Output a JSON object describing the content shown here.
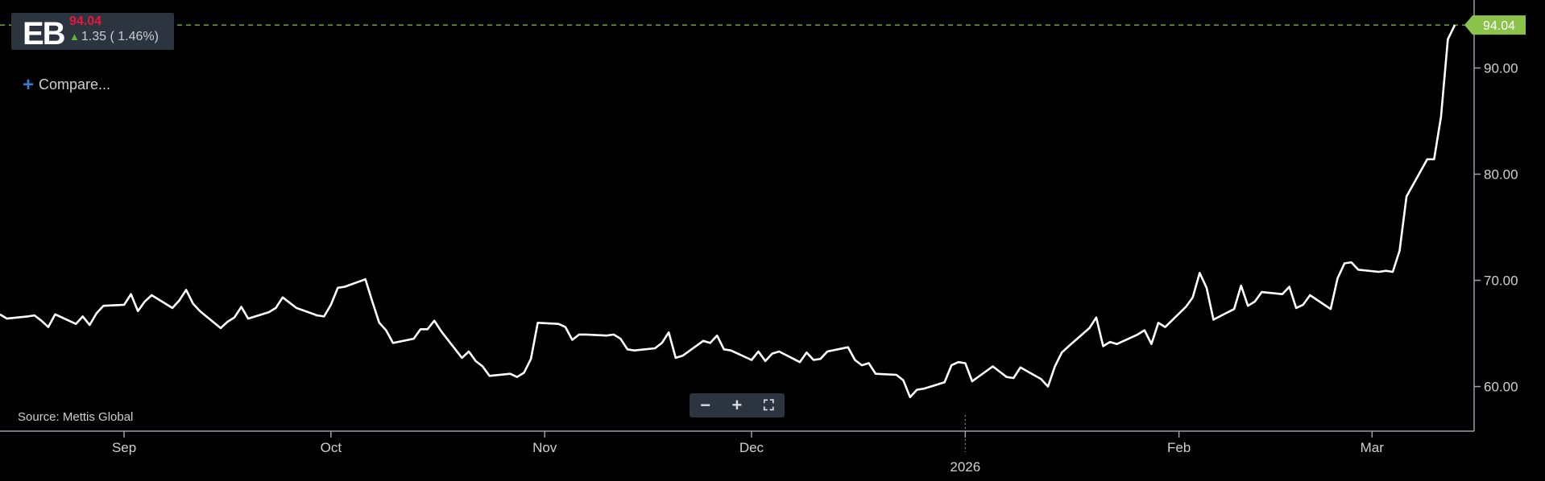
{
  "ticker": {
    "symbol": "EB",
    "last_price": "94.04",
    "change_text": "1.35 ( 1.46%)",
    "direction": "up",
    "price_color": "#e8173c",
    "change_arrow_color": "#5fba2e"
  },
  "compare_label": "Compare...",
  "source_label": "Source: Mettis Global",
  "zoom_controls": [
    {
      "name": "zoom-out-icon",
      "glyph": "−"
    },
    {
      "name": "zoom-in-icon",
      "glyph": "+"
    },
    {
      "name": "fullscreen-icon",
      "glyph": "⛶"
    }
  ],
  "chart_data": {
    "type": "line",
    "series": [
      {
        "color": "#ffffff",
        "points": [
          [
            "2025-08-14",
            66.8
          ],
          [
            "2025-08-15",
            66.4
          ],
          [
            "2025-08-18",
            66.6
          ],
          [
            "2025-08-19",
            66.7
          ],
          [
            "2025-08-20",
            66.2
          ],
          [
            "2025-08-21",
            65.6
          ],
          [
            "2025-08-22",
            66.8
          ],
          [
            "2025-08-25",
            65.9
          ],
          [
            "2025-08-26",
            66.6
          ],
          [
            "2025-08-27",
            65.8
          ],
          [
            "2025-08-28",
            66.9
          ],
          [
            "2025-08-29",
            67.6
          ],
          [
            "2025-09-01",
            67.7
          ],
          [
            "2025-09-02",
            68.7
          ],
          [
            "2025-09-03",
            67.1
          ],
          [
            "2025-09-04",
            68.0
          ],
          [
            "2025-09-05",
            68.6
          ],
          [
            "2025-09-08",
            67.4
          ],
          [
            "2025-09-09",
            68.1
          ],
          [
            "2025-09-10",
            69.1
          ],
          [
            "2025-09-11",
            67.8
          ],
          [
            "2025-09-12",
            67.1
          ],
          [
            "2025-09-15",
            65.5
          ],
          [
            "2025-09-16",
            66.1
          ],
          [
            "2025-09-17",
            66.5
          ],
          [
            "2025-09-18",
            67.5
          ],
          [
            "2025-09-19",
            66.4
          ],
          [
            "2025-09-22",
            67.0
          ],
          [
            "2025-09-23",
            67.4
          ],
          [
            "2025-09-24",
            68.4
          ],
          [
            "2025-09-25",
            67.9
          ],
          [
            "2025-09-26",
            67.4
          ],
          [
            "2025-09-29",
            66.7
          ],
          [
            "2025-09-30",
            66.6
          ],
          [
            "2025-10-01",
            67.7
          ],
          [
            "2025-10-02",
            69.3
          ],
          [
            "2025-10-03",
            69.4
          ],
          [
            "2025-10-06",
            70.1
          ],
          [
            "2025-10-07",
            68.0
          ],
          [
            "2025-10-08",
            66.0
          ],
          [
            "2025-10-09",
            65.3
          ],
          [
            "2025-10-10",
            64.1
          ],
          [
            "2025-10-13",
            64.5
          ],
          [
            "2025-10-14",
            65.4
          ],
          [
            "2025-10-15",
            65.4
          ],
          [
            "2025-10-16",
            66.2
          ],
          [
            "2025-10-17",
            65.2
          ],
          [
            "2025-10-20",
            62.7
          ],
          [
            "2025-10-21",
            63.3
          ],
          [
            "2025-10-22",
            62.4
          ],
          [
            "2025-10-23",
            61.9
          ],
          [
            "2025-10-24",
            61.0
          ],
          [
            "2025-10-27",
            61.2
          ],
          [
            "2025-10-28",
            60.9
          ],
          [
            "2025-10-29",
            61.3
          ],
          [
            "2025-10-30",
            62.6
          ],
          [
            "2025-10-31",
            66.0
          ],
          [
            "2025-11-03",
            65.9
          ],
          [
            "2025-11-04",
            65.6
          ],
          [
            "2025-11-05",
            64.4
          ],
          [
            "2025-11-06",
            64.9
          ],
          [
            "2025-11-07",
            64.9
          ],
          [
            "2025-11-10",
            64.8
          ],
          [
            "2025-11-11",
            64.9
          ],
          [
            "2025-11-12",
            64.5
          ],
          [
            "2025-11-13",
            63.5
          ],
          [
            "2025-11-14",
            63.4
          ],
          [
            "2025-11-17",
            63.6
          ],
          [
            "2025-11-18",
            64.1
          ],
          [
            "2025-11-19",
            65.1
          ],
          [
            "2025-11-20",
            62.7
          ],
          [
            "2025-11-21",
            62.9
          ],
          [
            "2025-11-24",
            64.3
          ],
          [
            "2025-11-25",
            64.1
          ],
          [
            "2025-11-26",
            64.8
          ],
          [
            "2025-11-27",
            63.5
          ],
          [
            "2025-11-28",
            63.4
          ],
          [
            "2025-12-01",
            62.5
          ],
          [
            "2025-12-02",
            63.3
          ],
          [
            "2025-12-03",
            62.4
          ],
          [
            "2025-12-04",
            63.1
          ],
          [
            "2025-12-05",
            63.3
          ],
          [
            "2025-12-08",
            62.3
          ],
          [
            "2025-12-09",
            63.2
          ],
          [
            "2025-12-10",
            62.5
          ],
          [
            "2025-12-11",
            62.6
          ],
          [
            "2025-12-12",
            63.3
          ],
          [
            "2025-12-15",
            63.7
          ],
          [
            "2025-12-16",
            62.5
          ],
          [
            "2025-12-17",
            62.0
          ],
          [
            "2025-12-18",
            62.2
          ],
          [
            "2025-12-19",
            61.2
          ],
          [
            "2025-12-22",
            61.1
          ],
          [
            "2025-12-23",
            60.6
          ],
          [
            "2025-12-24",
            59.0
          ],
          [
            "2025-12-25",
            59.7
          ],
          [
            "2025-12-26",
            59.8
          ],
          [
            "2025-12-29",
            60.4
          ],
          [
            "2025-12-30",
            62.0
          ],
          [
            "2025-12-31",
            62.3
          ],
          [
            "2026-01-01",
            62.2
          ],
          [
            "2026-01-02",
            60.5
          ],
          [
            "2026-01-05",
            61.9
          ],
          [
            "2026-01-06",
            61.4
          ],
          [
            "2026-01-07",
            60.9
          ],
          [
            "2026-01-08",
            60.8
          ],
          [
            "2026-01-09",
            61.8
          ],
          [
            "2026-01-12",
            60.7
          ],
          [
            "2026-01-13",
            60.0
          ],
          [
            "2026-01-14",
            61.9
          ],
          [
            "2026-01-15",
            63.2
          ],
          [
            "2026-01-16",
            63.8
          ],
          [
            "2026-01-19",
            65.5
          ],
          [
            "2026-01-20",
            66.5
          ],
          [
            "2026-01-21",
            63.8
          ],
          [
            "2026-01-22",
            64.2
          ],
          [
            "2026-01-23",
            64.0
          ],
          [
            "2026-01-26",
            64.9
          ],
          [
            "2026-01-27",
            65.3
          ],
          [
            "2026-01-28",
            64.0
          ],
          [
            "2026-01-29",
            66.0
          ],
          [
            "2026-01-30",
            65.6
          ],
          [
            "2026-02-02",
            67.5
          ],
          [
            "2026-02-03",
            68.4
          ],
          [
            "2026-02-04",
            70.7
          ],
          [
            "2026-02-05",
            69.3
          ],
          [
            "2026-02-06",
            66.3
          ],
          [
            "2026-02-09",
            67.3
          ],
          [
            "2026-02-10",
            69.5
          ],
          [
            "2026-02-11",
            67.6
          ],
          [
            "2026-02-12",
            68.0
          ],
          [
            "2026-02-13",
            68.9
          ],
          [
            "2026-02-16",
            68.7
          ],
          [
            "2026-02-17",
            69.4
          ],
          [
            "2026-02-18",
            67.4
          ],
          [
            "2026-02-19",
            67.7
          ],
          [
            "2026-02-20",
            68.6
          ],
          [
            "2026-02-23",
            67.3
          ],
          [
            "2026-02-24",
            70.2
          ],
          [
            "2026-02-25",
            71.6
          ],
          [
            "2026-02-26",
            71.7
          ],
          [
            "2026-02-27",
            71.0
          ],
          [
            "2026-03-02",
            70.8
          ],
          [
            "2026-03-03",
            70.9
          ],
          [
            "2026-03-04",
            70.8
          ],
          [
            "2026-03-05",
            72.8
          ],
          [
            "2026-03-06",
            77.9
          ],
          [
            "2026-03-09",
            81.4
          ],
          [
            "2026-03-10",
            81.4
          ],
          [
            "2026-03-11",
            85.4
          ],
          [
            "2026-03-12",
            92.7
          ],
          [
            "2026-03-13",
            94.04
          ]
        ]
      }
    ],
    "x_axis": {
      "type": "date",
      "range": [
        "2025-08-14",
        "2026-03-13"
      ],
      "ticks": [
        {
          "label": "Sep",
          "date": "2025-09-01"
        },
        {
          "label": "Oct",
          "date": "2025-10-01"
        },
        {
          "label": "Nov",
          "date": "2025-11-01"
        },
        {
          "label": "Dec",
          "date": "2025-12-01"
        },
        {
          "label": "2026",
          "date": "2026-01-01",
          "major": true
        },
        {
          "label": "Feb",
          "date": "2026-02-01"
        },
        {
          "label": "Mar",
          "date": "2026-03-01"
        }
      ]
    },
    "y_axis": {
      "position": "right",
      "range": [
        55.8,
        96.4
      ],
      "ticks": [
        {
          "label": "60.00",
          "value": 60
        },
        {
          "label": "70.00",
          "value": 70
        },
        {
          "label": "80.00",
          "value": 80
        },
        {
          "label": "90.00",
          "value": 90
        }
      ]
    },
    "last_price_line": {
      "value": 94.04,
      "label": "94.04",
      "color": "#8bc34a"
    },
    "grid": false
  }
}
